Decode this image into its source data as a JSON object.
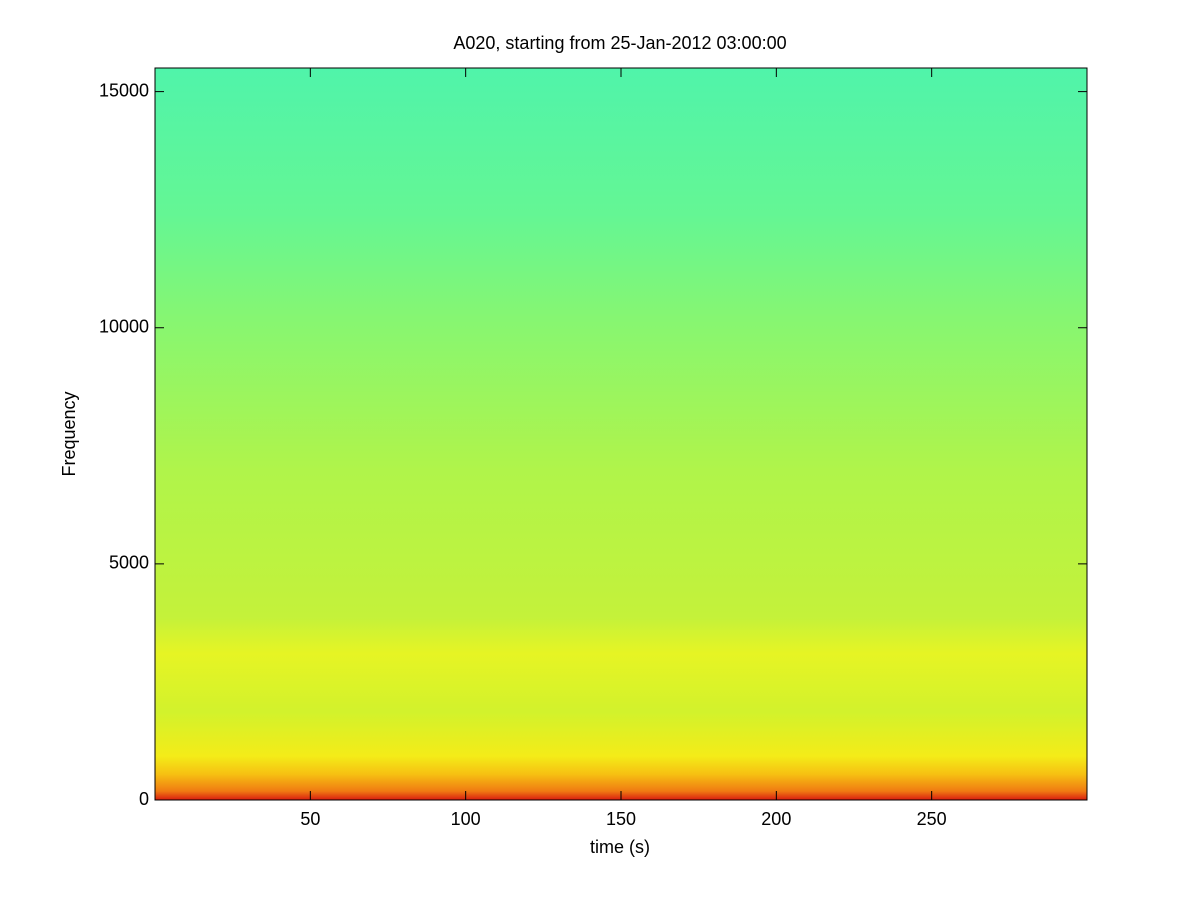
{
  "chart_data": {
    "type": "spectrogram",
    "title": "A020, starting from 25-Jan-2012 03:00:00",
    "xlabel": "time (s)",
    "ylabel": "Frequency",
    "xlim": [
      0,
      300
    ],
    "xticks": [
      50,
      100,
      150,
      200,
      250
    ],
    "ylim": [
      0,
      15500
    ],
    "yticks": [
      0,
      5000,
      10000,
      15000
    ]
  }
}
